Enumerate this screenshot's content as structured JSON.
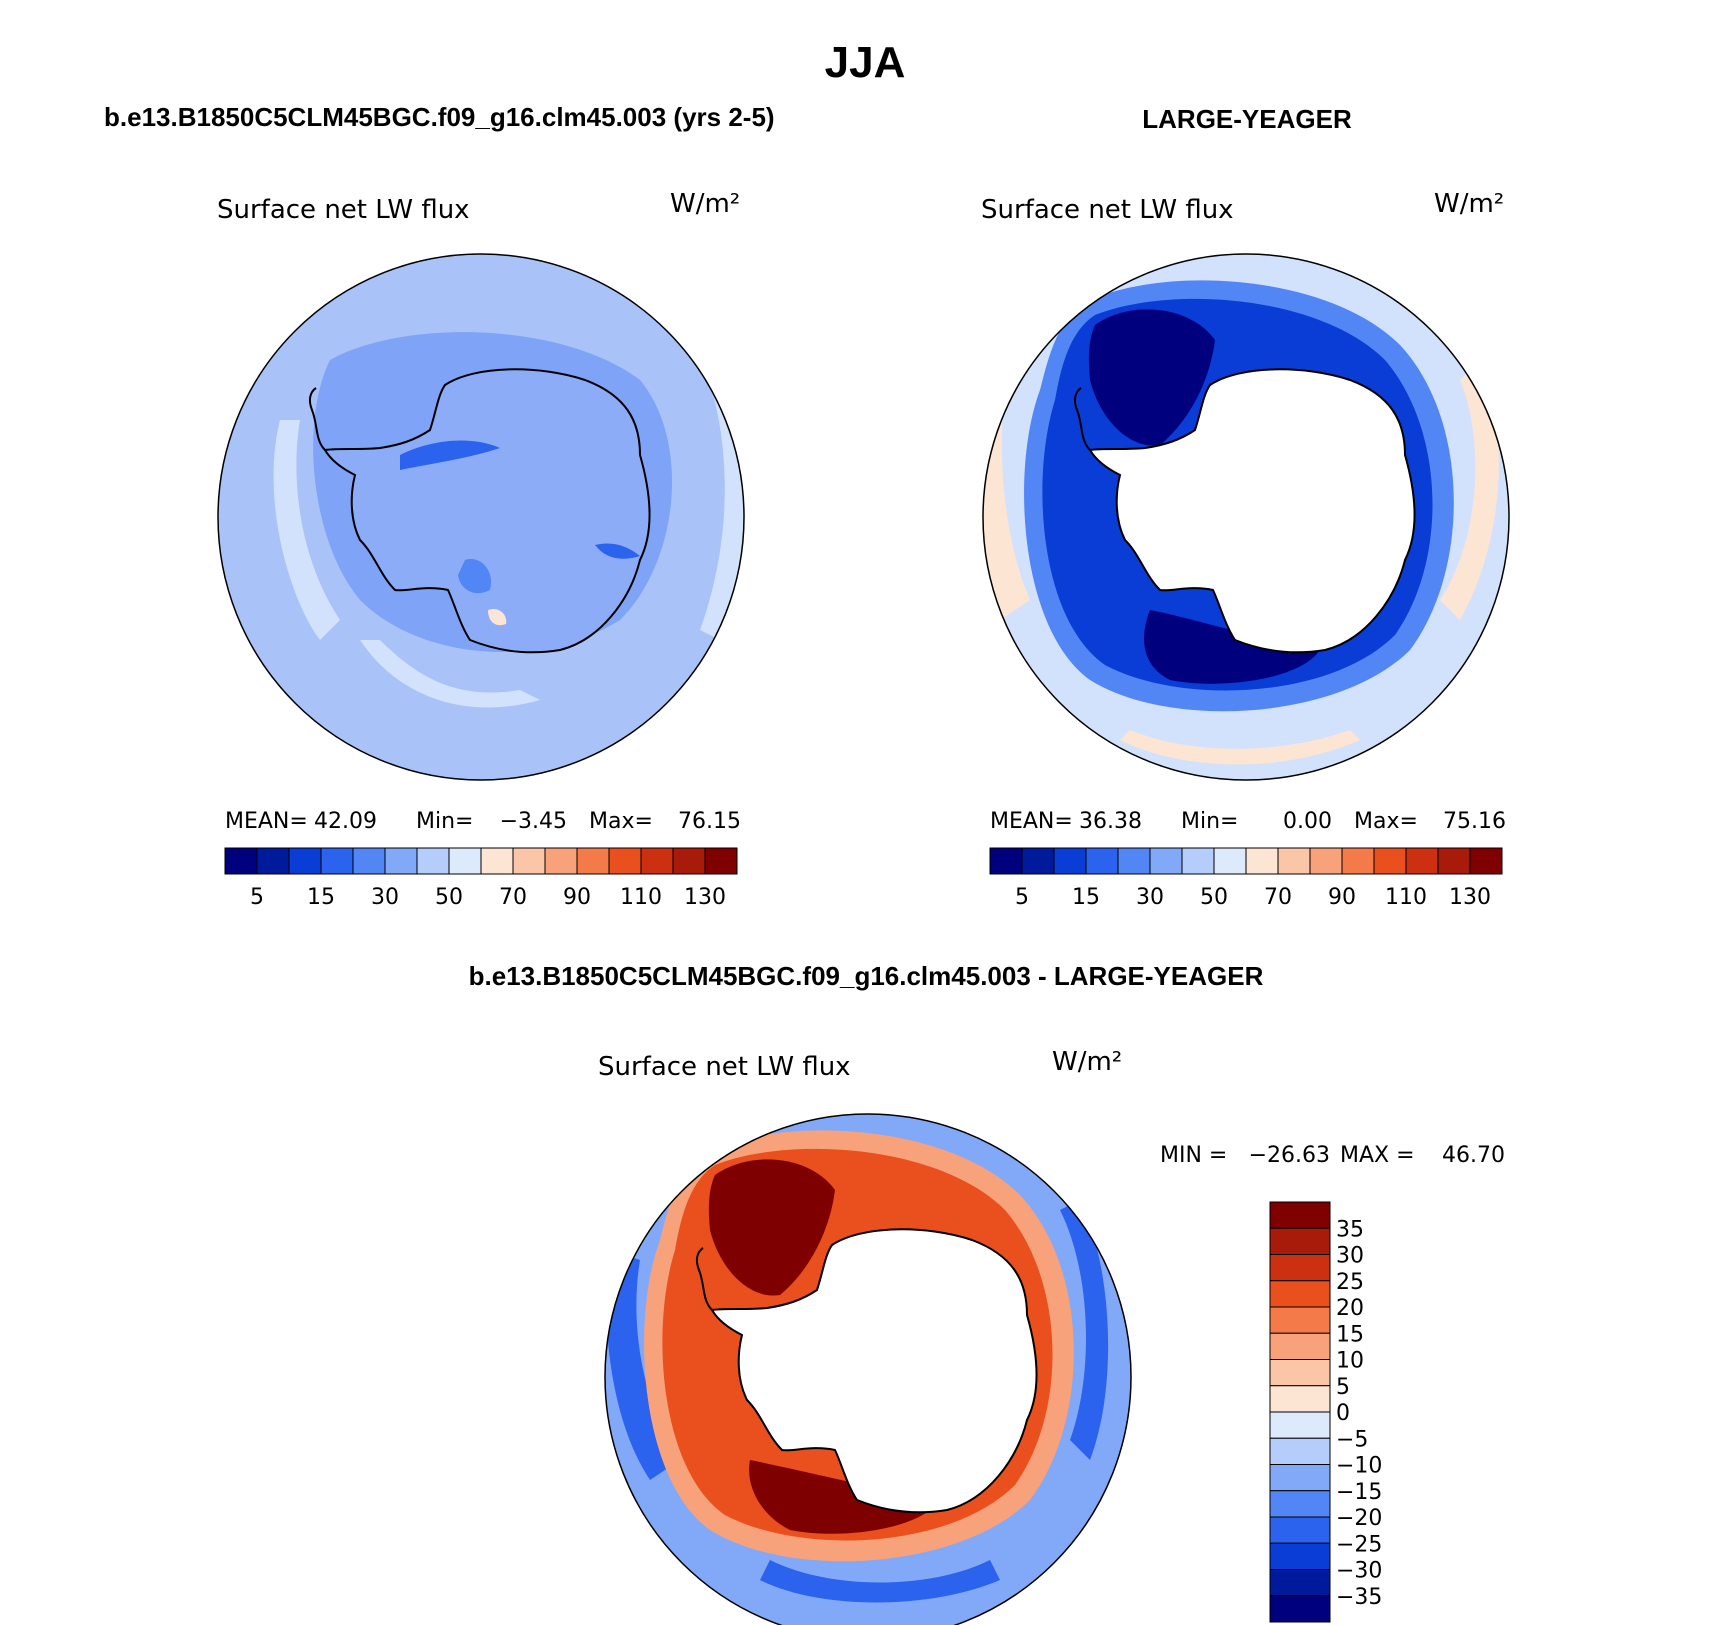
{
  "figure": {
    "title": "JJA",
    "panel_1_heading": "b.e13.B1850C5CLM45BGC.f09_g16.clm45.003 (yrs 2-5)",
    "panel_2_heading": "LARGE-YEAGER",
    "panel_3_heading": "b.e13.B1850C5CLM45BGC.f09_g16.clm45.003 - LARGE-YEAGER"
  },
  "colors": {
    "coastline": "#000000",
    "land_mask": "#ffffff",
    "blue_scale": [
      "#00007f",
      "#001a9c",
      "#0a3cd6",
      "#2b62ee",
      "#5286f5",
      "#82a8f8",
      "#b5cdfb",
      "#ddeafc"
    ],
    "red_scale": [
      "#fde5d4",
      "#fbc6a8",
      "#f8a27c",
      "#f47a4a",
      "#ea4f1e",
      "#cc3010",
      "#a81b0a",
      "#7f0000"
    ]
  },
  "chart_data": [
    {
      "type": "heatmap",
      "projection": "south polar stereographic",
      "title": "Surface net LW flux",
      "units": "W/m²",
      "mean_label": "MEAN=",
      "mean": "42.09",
      "min_label": "Min=",
      "min": "−3.45",
      "max_label": "Max=",
      "max": "76.15",
      "colorbar_ticks": [
        "5",
        "15",
        "30",
        "50",
        "70",
        "90",
        "110",
        "130"
      ],
      "contour_levels": [
        5,
        10,
        15,
        20,
        30,
        40,
        50,
        60,
        70,
        80,
        90,
        100,
        110,
        120,
        130
      ],
      "dominant_range": [
        30,
        50
      ],
      "land_masked": false
    },
    {
      "type": "heatmap",
      "projection": "south polar stereographic",
      "title": "Surface net LW flux",
      "units": "W/m²",
      "mean_label": "MEAN=",
      "mean": "36.38",
      "min_label": "Min=",
      "min": "0.00",
      "max_label": "Max=",
      "max": "75.16",
      "colorbar_ticks": [
        "5",
        "15",
        "30",
        "50",
        "70",
        "90",
        "110",
        "130"
      ],
      "contour_levels": [
        5,
        10,
        15,
        20,
        30,
        40,
        50,
        60,
        70,
        80,
        90,
        100,
        110,
        120,
        130
      ],
      "dominant_range": [
        5,
        70
      ],
      "land_masked": true
    },
    {
      "type": "heatmap",
      "projection": "south polar stereographic",
      "title": "Surface net LW flux",
      "units": "W/m²",
      "min_label": "MIN =",
      "min": "−26.63",
      "max_label": "MAX =",
      "max": "46.70",
      "colorbar_ticks": [
        "35",
        "30",
        "25",
        "20",
        "15",
        "10",
        "5",
        "0",
        "−5",
        "−10",
        "−15",
        "−20",
        "−25",
        "−30",
        "−35"
      ],
      "contour_levels": [
        -35,
        -30,
        -25,
        -20,
        -15,
        -10,
        -5,
        0,
        5,
        10,
        15,
        20,
        25,
        30,
        35
      ],
      "dominant_range": [
        -35,
        35
      ],
      "land_masked": true
    }
  ]
}
